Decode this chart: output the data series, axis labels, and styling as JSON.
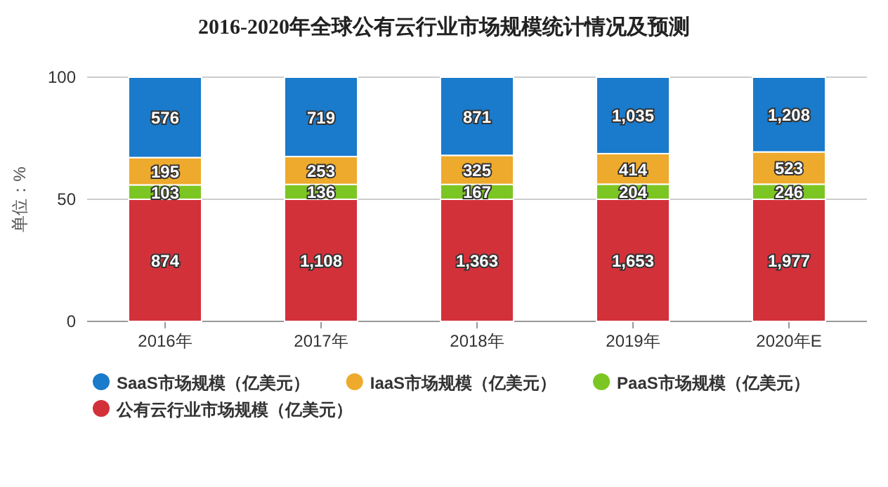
{
  "chart_data": {
    "type": "bar",
    "title": "2016-2020年全球公有云行业市场规模统计情况及预测",
    "ylabel": "单位：%",
    "categories": [
      "2016年",
      "2017年",
      "2018年",
      "2019年",
      "2020年E"
    ],
    "stacked": true,
    "series": [
      {
        "name": "公有云行业市场规模（亿美元）",
        "color": "#d3313a",
        "values": [
          50.0,
          50.0,
          50.0,
          50.0,
          50.0
        ]
      },
      {
        "name": "PaaS市场规模（亿美元）",
        "color": "#7cc623",
        "values": [
          5.9,
          6.1,
          6.1,
          6.2,
          6.2
        ]
      },
      {
        "name": "IaaS市场规模（亿美元）",
        "color": "#eeaa2c",
        "values": [
          11.2,
          11.4,
          11.9,
          12.5,
          13.2
        ]
      },
      {
        "name": "SaaS市场规模（亿美元）",
        "color": "#1a7acb",
        "values": [
          32.9,
          32.5,
          32.0,
          31.3,
          30.6
        ]
      }
    ],
    "ylim": [
      0,
      100
    ],
    "yticks": [
      0,
      50,
      100
    ],
    "grid": "y",
    "legend": "bottom",
    "annotations": [
      "874",
      "103",
      "195",
      "576",
      "1,108",
      "136",
      "253",
      "719",
      "1,363",
      "167",
      "325",
      "871",
      "1,653",
      "204",
      "414",
      "1,035",
      "1,977",
      "246",
      "523",
      "1,208"
    ]
  }
}
